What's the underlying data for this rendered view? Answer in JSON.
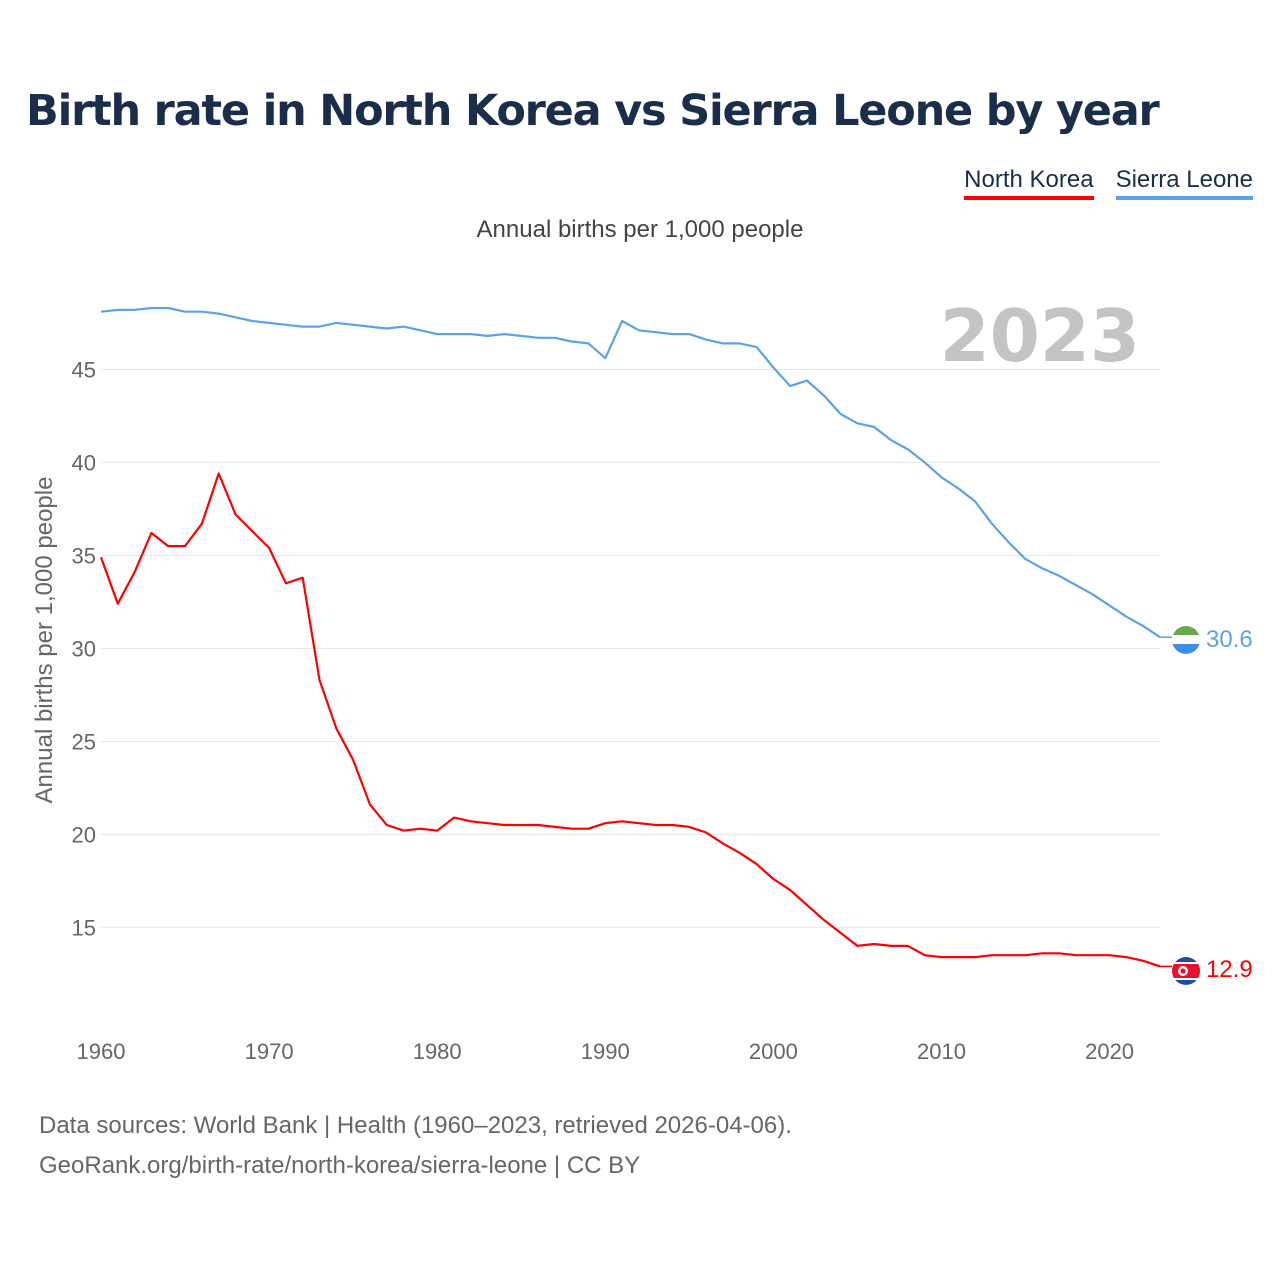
{
  "title": "Birth rate in North Korea vs Sierra Leone by year",
  "subtitle": "Annual births per 1,000 people",
  "legend": {
    "north_korea": "North Korea",
    "sierra_leone": "Sierra Leone"
  },
  "year_watermark": "2023",
  "footer": {
    "line1": "Data sources: World Bank | Health (1960–2023, retrieved 2026-04-06).",
    "line2": "GeoRank.org/birth-rate/north-korea/sierra-leone | CC BY"
  },
  "colors": {
    "north_korea": "#ff0000",
    "sierra_leone": "#5ba3e8"
  },
  "chart_data": {
    "type": "line",
    "title": "Birth rate in North Korea vs Sierra Leone by year",
    "xlabel": "",
    "ylabel": "Annual births per 1,000 people",
    "xlim": [
      1960,
      2023
    ],
    "ylim": [
      10.5,
      49
    ],
    "x_ticks": [
      1960,
      1970,
      1980,
      1990,
      2000,
      2010,
      2020
    ],
    "y_ticks": [
      15,
      20,
      25,
      30,
      35,
      40,
      45
    ],
    "x": [
      1960,
      1961,
      1962,
      1963,
      1964,
      1965,
      1966,
      1967,
      1968,
      1969,
      1970,
      1971,
      1972,
      1973,
      1974,
      1975,
      1976,
      1977,
      1978,
      1979,
      1980,
      1981,
      1982,
      1983,
      1984,
      1985,
      1986,
      1987,
      1988,
      1989,
      1990,
      1991,
      1992,
      1993,
      1994,
      1995,
      1996,
      1997,
      1998,
      1999,
      2000,
      2001,
      2002,
      2003,
      2004,
      2005,
      2006,
      2007,
      2008,
      2009,
      2010,
      2011,
      2012,
      2013,
      2014,
      2015,
      2016,
      2017,
      2018,
      2019,
      2020,
      2021,
      2022,
      2023
    ],
    "series": [
      {
        "name": "North Korea",
        "color": "#ff0000",
        "end_label": "12.9",
        "values": [
          34.9,
          32.4,
          34.1,
          36.2,
          35.5,
          35.5,
          36.7,
          39.4,
          37.2,
          36.3,
          35.4,
          33.5,
          33.8,
          28.3,
          25.7,
          24.0,
          21.6,
          20.5,
          20.2,
          20.3,
          20.2,
          20.9,
          20.7,
          20.6,
          20.5,
          20.5,
          20.5,
          20.4,
          20.3,
          20.3,
          20.6,
          20.7,
          20.6,
          20.5,
          20.5,
          20.4,
          20.1,
          19.5,
          19.0,
          18.4,
          17.6,
          17.0,
          16.2,
          15.4,
          14.7,
          14.0,
          14.1,
          14.0,
          14.0,
          13.5,
          13.4,
          13.4,
          13.4,
          13.5,
          13.5,
          13.5,
          13.6,
          13.6,
          13.5,
          13.5,
          13.5,
          13.4,
          13.2,
          12.9
        ]
      },
      {
        "name": "Sierra Leone",
        "color": "#5ba3e8",
        "end_label": "30.6",
        "values": [
          48.1,
          48.2,
          48.2,
          48.3,
          48.3,
          48.1,
          48.1,
          48.0,
          47.8,
          47.6,
          47.5,
          47.4,
          47.3,
          47.3,
          47.5,
          47.4,
          47.3,
          47.2,
          47.3,
          47.1,
          46.9,
          46.9,
          46.9,
          46.8,
          46.9,
          46.8,
          46.7,
          46.7,
          46.5,
          46.4,
          45.6,
          47.6,
          47.1,
          47.0,
          46.9,
          46.9,
          46.6,
          46.4,
          46.4,
          46.2,
          45.1,
          44.1,
          44.4,
          43.6,
          42.6,
          42.1,
          41.9,
          41.2,
          40.7,
          40.0,
          39.2,
          38.6,
          37.9,
          36.7,
          35.7,
          34.8,
          34.3,
          33.9,
          33.4,
          32.9,
          32.3,
          31.7,
          31.2,
          30.6
        ]
      }
    ]
  }
}
